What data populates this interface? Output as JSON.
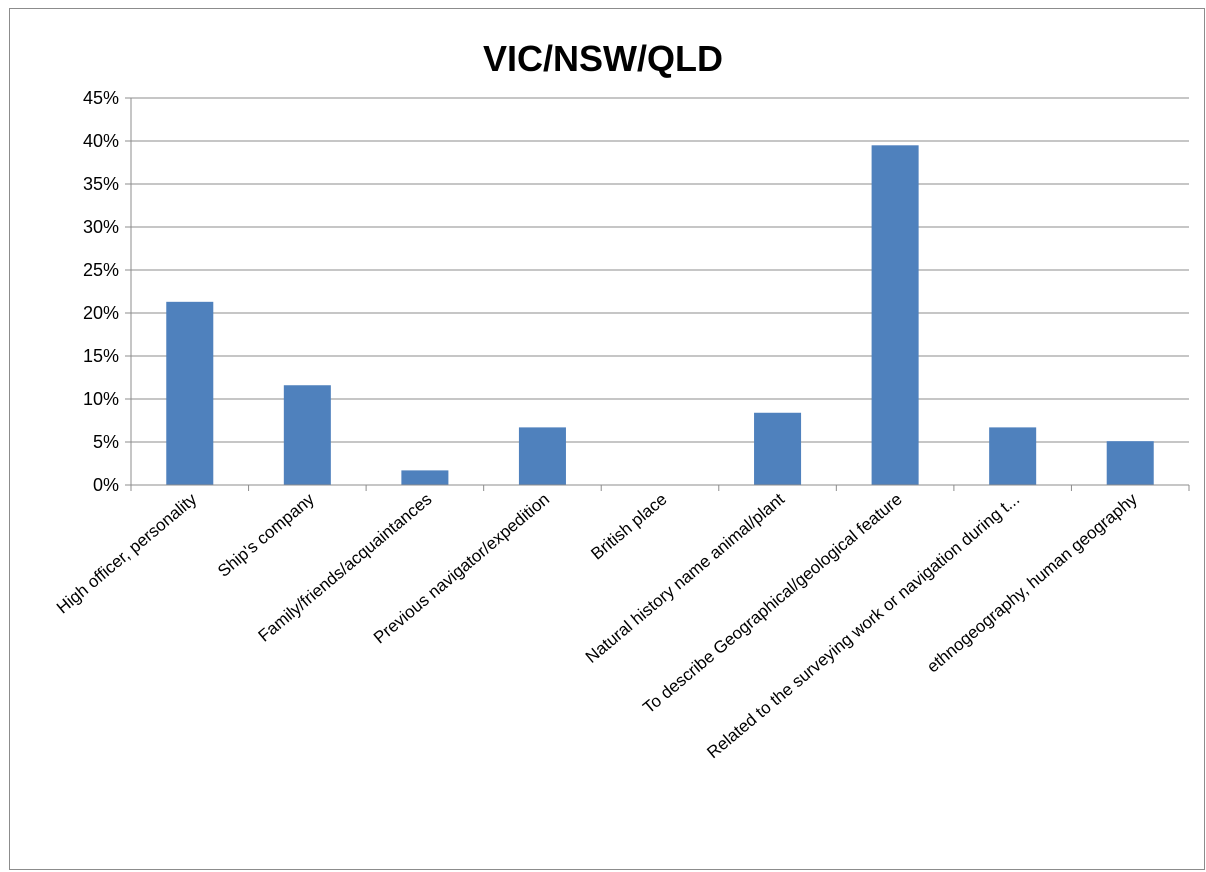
{
  "chart_data": {
    "type": "bar",
    "title": "VIC/NSW/QLD",
    "xlabel": "",
    "ylabel": "",
    "ylim": [
      0,
      45
    ],
    "yticks": [
      "0%",
      "5%",
      "10%",
      "15%",
      "20%",
      "25%",
      "30%",
      "35%",
      "40%",
      "45%"
    ],
    "grid": true,
    "legend": "none",
    "bar_color": "#4f81bd",
    "categories": [
      "High officer, personality",
      "Ship's company",
      "Family/friends/acquaintances",
      "Previous navigator/expedition",
      "British place",
      "Natural history name animal/plant",
      "To describe Geographical/geological feature",
      "Related to the surveying work or navigation during t...",
      "ethnogeography, human geography"
    ],
    "values": [
      21.3,
      11.6,
      1.7,
      6.7,
      0,
      8.4,
      39.5,
      6.7,
      5.1
    ]
  }
}
